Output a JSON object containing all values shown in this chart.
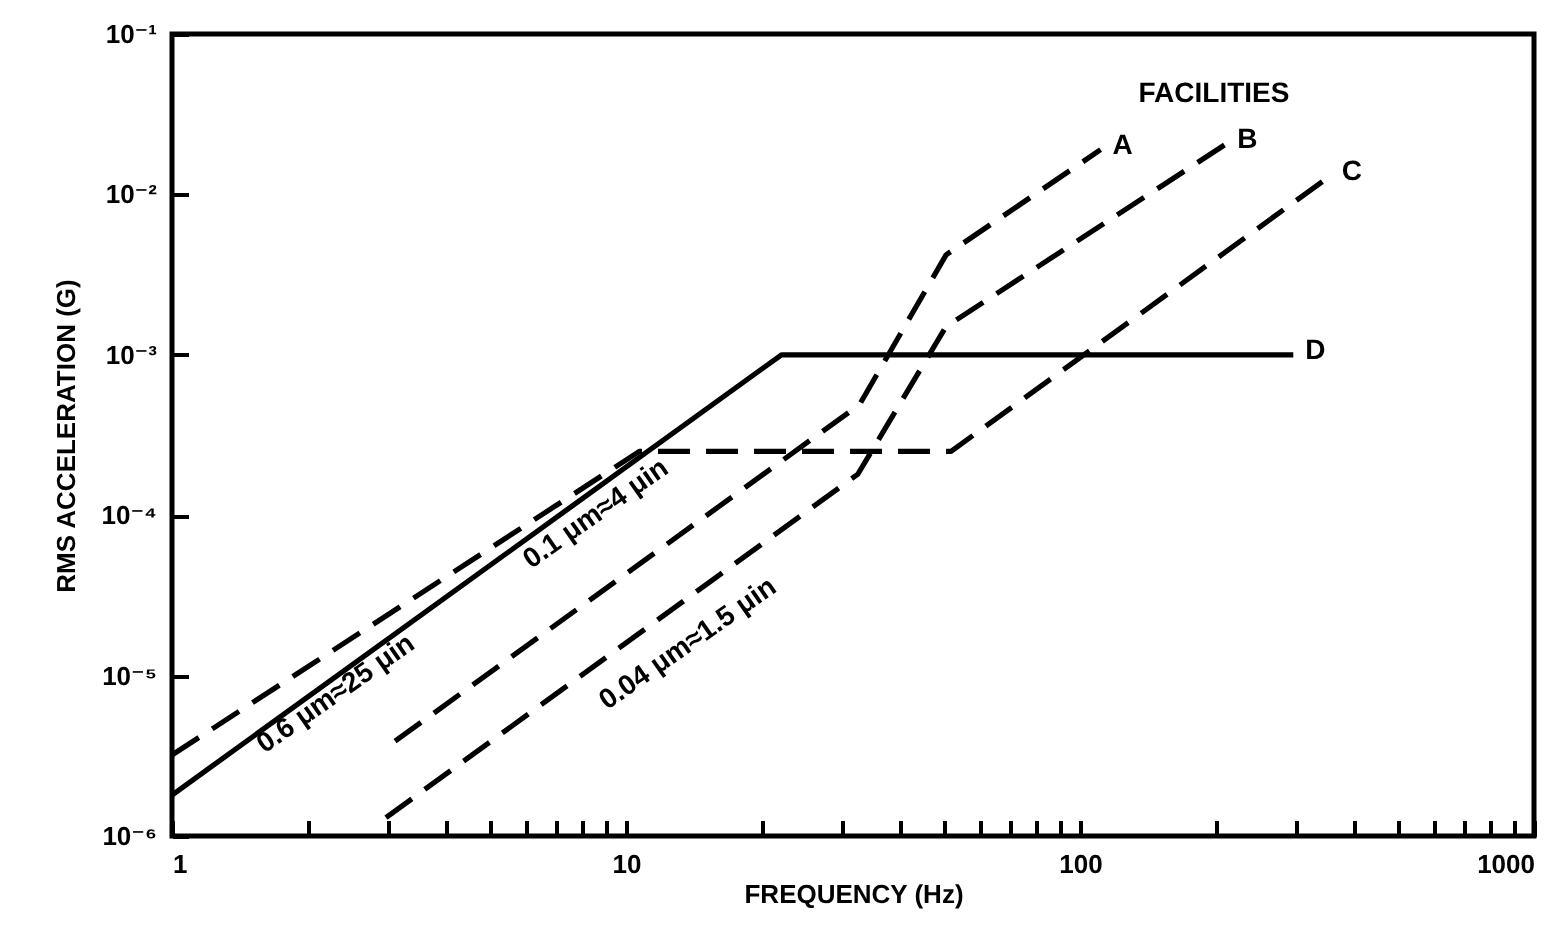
{
  "chart_data": {
    "type": "line",
    "xlabel": "FREQUENCY (Hz)",
    "ylabel": "RMS ACCELERATION (G)",
    "legend_title": "FACILITIES",
    "log": "xy",
    "grid": false,
    "xlim": [
      1,
      1000
    ],
    "ylim": [
      1e-06,
      0.1
    ],
    "xticks": [
      1,
      {
        "value": 2,
        "label": null
      },
      {
        "value": 3,
        "label": null
      },
      {
        "value": 4,
        "label": null
      },
      {
        "value": 5,
        "label": null
      },
      {
        "value": 6,
        "label": null
      },
      {
        "value": 7,
        "label": null
      },
      {
        "value": 8,
        "label": null
      },
      {
        "value": 9,
        "label": null
      },
      10,
      {
        "value": 20,
        "label": null
      },
      {
        "value": 30,
        "label": null
      },
      {
        "value": 40,
        "label": null
      },
      {
        "value": 50,
        "label": null
      },
      {
        "value": 60,
        "label": null
      },
      {
        "value": 70,
        "label": null
      },
      {
        "value": 80,
        "label": null
      },
      {
        "value": 90,
        "label": null
      },
      100,
      {
        "value": 200,
        "label": null
      },
      {
        "value": 300,
        "label": null
      },
      {
        "value": 400,
        "label": null
      },
      {
        "value": 500,
        "label": null
      },
      {
        "value": 600,
        "label": null
      },
      {
        "value": 700,
        "label": null
      },
      {
        "value": 800,
        "label": null
      },
      {
        "value": 900,
        "label": null
      },
      1000
    ],
    "yticks": [
      {
        "value": 1e-06,
        "label": "10⁻⁶"
      },
      {
        "value": 1e-05,
        "label": "10⁻⁵"
      },
      {
        "value": 0.0001,
        "label": "10⁻⁴"
      },
      {
        "value": 0.001,
        "label": "10⁻³"
      },
      {
        "value": 0.01,
        "label": "10⁻²"
      },
      {
        "value": 0.1,
        "label": "10⁻¹"
      }
    ],
    "series": [
      {
        "name": "A",
        "color": "#000000",
        "line_style": "dashed",
        "x": [
          3.1,
          32.7,
          50.7,
          111
        ],
        "values": [
          3.9e-06,
          0.00049,
          0.0042,
          0.019
        ]
      },
      {
        "name": "B",
        "color": "#000000",
        "line_style": "dashed",
        "x": [
          2.96,
          32.4,
          50.7,
          209
        ],
        "values": [
          1.3e-06,
          0.00018,
          0.0015,
          0.0205
        ]
      },
      {
        "name": "C",
        "color": "#000000",
        "line_style": "dashed",
        "x": [
          1,
          10.7,
          52,
          355
        ],
        "values": [
          3.2e-06,
          0.00025,
          0.00025,
          0.013
        ]
      },
      {
        "name": "D",
        "color": "#000000",
        "line_style": "solid",
        "x": [
          1,
          22,
          295
        ],
        "values": [
          1.8e-06,
          0.001,
          0.001
        ]
      }
    ],
    "annotations": [
      "0.6 μm≈25 μin",
      "0.1 μm≈4 μin",
      "0.04 μm≈1.5 μin"
    ]
  }
}
